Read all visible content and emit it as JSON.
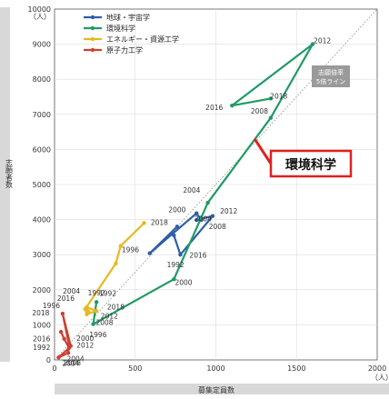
{
  "chart_data": {
    "type": "line",
    "x": {
      "label": "募集定員数",
      "unit": "（人）",
      "range": [
        0,
        2000
      ],
      "ticks": [
        0,
        500,
        1000,
        1500,
        2000
      ]
    },
    "y": {
      "label": "志願者数",
      "unit": "（人）",
      "range": [
        0,
        10000
      ],
      "ticks": [
        0,
        1000,
        2000,
        3000,
        4000,
        5000,
        6000,
        7000,
        8000,
        9000,
        10000
      ]
    },
    "legend_position": "top-left",
    "series": [
      {
        "name": "地球・宇宙学",
        "color": "#2e5fa8",
        "points": [
          {
            "year": "1992",
            "x": 760,
            "y": 3800
          },
          {
            "year": "1996",
            "x": 590,
            "y": 3040
          },
          {
            "year": "2000",
            "x": 880,
            "y": 4180
          },
          {
            "year": "2004",
            "x": 910,
            "y": 3990
          },
          {
            "year": "2008",
            "x": 880,
            "y": 3990
          },
          {
            "year": "2012",
            "x": 980,
            "y": 4100
          },
          {
            "year": "2016",
            "x": 780,
            "y": 3000
          },
          {
            "year": "2018",
            "x": 740,
            "y": 3550
          }
        ],
        "labels": [
          {
            "year": "1992",
            "x": 750,
            "y": 2720
          },
          {
            "year": "1996",
            "x": 470,
            "y": 3150
          },
          {
            "year": "2000",
            "x": 760,
            "y": 4290
          },
          {
            "year": "2004",
            "x": 850,
            "y": 4840
          },
          {
            "year": "2008",
            "x": 1010,
            "y": 3810
          },
          {
            "year": "2012",
            "x": 1080,
            "y": 4250
          },
          {
            "year": "2016",
            "x": 890,
            "y": 2990
          },
          {
            "year": "2018",
            "x": 650,
            "y": 3920
          }
        ]
      },
      {
        "name": "環境科学",
        "color": "#1f9b64",
        "points": [
          {
            "year": "1992",
            "x": 260,
            "y": 1650
          },
          {
            "year": "1996",
            "x": 240,
            "y": 1020
          },
          {
            "year": "2000",
            "x": 740,
            "y": 2300
          },
          {
            "year": "2004",
            "x": 950,
            "y": 4480
          },
          {
            "year": "2008",
            "x": 1340,
            "y": 6900
          },
          {
            "year": "2012",
            "x": 1600,
            "y": 9000
          },
          {
            "year": "2016",
            "x": 1100,
            "y": 7250
          },
          {
            "year": "2018",
            "x": 1340,
            "y": 7450
          }
        ],
        "labels": [
          {
            "year": "1992",
            "x": 330,
            "y": 1900
          },
          {
            "year": "1996",
            "x": 270,
            "y": 730
          },
          {
            "year": "2000",
            "x": 800,
            "y": 2210
          },
          {
            "year": "2004",
            "x": 920,
            "y": 4030
          },
          {
            "year": "2008",
            "x": 1270,
            "y": 7100
          },
          {
            "year": "2012",
            "x": 1660,
            "y": 9100
          },
          {
            "year": "2016",
            "x": 990,
            "y": 7200
          },
          {
            "year": "2018",
            "x": 1390,
            "y": 7530
          }
        ]
      },
      {
        "name": "エネルギー・資源工学",
        "color": "#e8b820",
        "points": [
          {
            "year": "1992",
            "x": 555,
            "y": 3900
          },
          {
            "year": "1996",
            "x": 410,
            "y": 3250
          },
          {
            "year": "2000",
            "x": 380,
            "y": 2750
          },
          {
            "year": "2004",
            "x": 190,
            "y": 1450
          },
          {
            "year": "2008",
            "x": 200,
            "y": 1300
          },
          {
            "year": "2012",
            "x": 260,
            "y": 1400
          },
          {
            "year": "2016",
            "x": 200,
            "y": 1500
          },
          {
            "year": "2018",
            "x": 210,
            "y": 1380
          }
        ],
        "labels": []
      },
      {
        "name": "原子力工学",
        "color": "#cc4033",
        "points": [
          {
            "year": "1992",
            "x": 100,
            "y": 400
          },
          {
            "year": "1996",
            "x": 50,
            "y": 1320
          },
          {
            "year": "2000",
            "x": 90,
            "y": 420
          },
          {
            "year": "2004",
            "x": 85,
            "y": 200
          },
          {
            "year": "2008",
            "x": 25,
            "y": 70
          },
          {
            "year": "2012",
            "x": 90,
            "y": 340
          },
          {
            "year": "2016",
            "x": 60,
            "y": 600
          },
          {
            "year": "2018",
            "x": 40,
            "y": 800
          }
        ],
        "labels": [
          {
            "year": "1992",
            "x": -80,
            "y": 360
          },
          {
            "year": "1996",
            "x": -20,
            "y": 1560
          },
          {
            "year": "2000",
            "x": 190,
            "y": 620
          },
          {
            "year": "2004",
            "x": 130,
            "y": 40
          },
          {
            "year": "2008",
            "x": 110,
            "y": -80
          },
          {
            "year": "2012",
            "x": 190,
            "y": 430
          },
          {
            "year": "2016",
            "x": -80,
            "y": 610
          },
          {
            "year": "2018",
            "x": -85,
            "y": 1350
          }
        ]
      }
    ],
    "shared_labels": [
      {
        "text": "2004",
        "x": 105,
        "y": 1970
      },
      {
        "text": "2016",
        "x": 70,
        "y": 1760
      },
      {
        "text": "1992",
        "x": 260,
        "y": 1920
      },
      {
        "text": "2018",
        "x": 380,
        "y": 1520
      },
      {
        "text": "2012",
        "x": 340,
        "y": 1260
      },
      {
        "text": "2008",
        "x": 310,
        "y": 1080
      },
      {
        "text": "2004",
        "x": 100,
        "y": -90
      }
    ],
    "reference_line": {
      "label_lines": [
        "志願倍率",
        "5倍ライン"
      ],
      "ratio": 5,
      "color": "#888888",
      "label_bg": "#9a9a9a"
    },
    "annotation": {
      "text": "環境科学",
      "color": "#e02020",
      "pointer_from": {
        "x": 1240,
        "y": 6300
      }
    }
  }
}
